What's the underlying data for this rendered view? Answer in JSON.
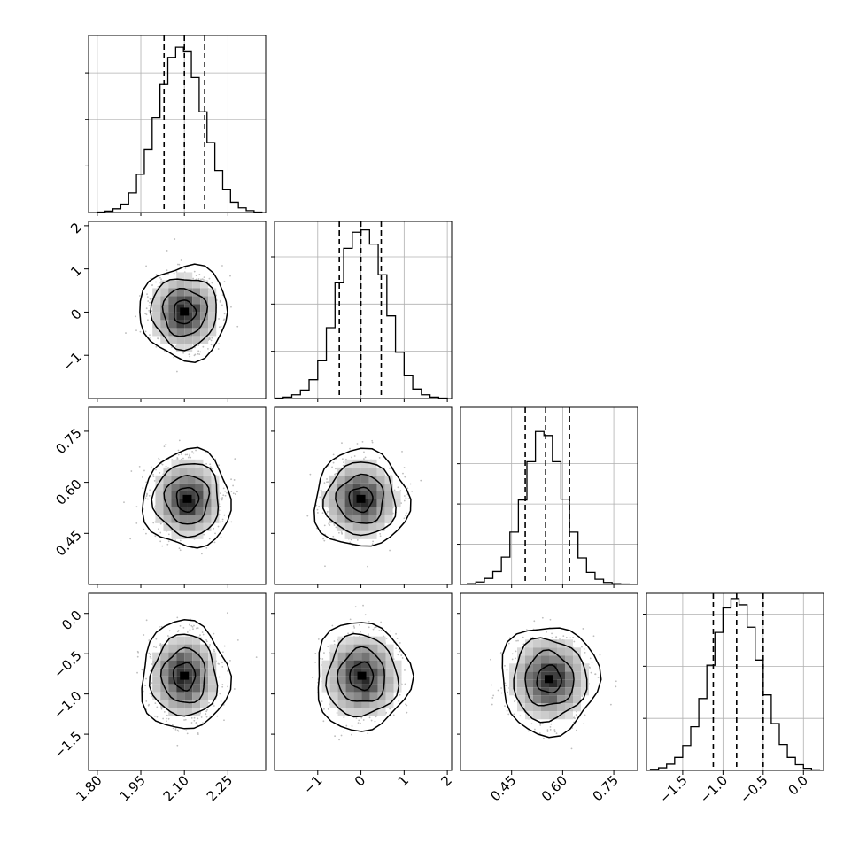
{
  "chart_data": {
    "type": "corner",
    "title": "",
    "grid": true,
    "parameters": [
      {
        "ticks": [
          1.8,
          1.95,
          2.1,
          2.25
        ],
        "tick_labels": [
          "1.80",
          "1.95",
          "2.10",
          "2.25"
        ],
        "range": [
          1.77,
          2.38
        ],
        "quantiles": [
          2.03,
          2.1,
          2.17
        ],
        "hist_bins": [
          1.8,
          1.827,
          1.854,
          1.881,
          1.908,
          1.935,
          1.962,
          1.989,
          2.016,
          2.043,
          2.07,
          2.097,
          2.124,
          2.151,
          2.178,
          2.205,
          2.232,
          2.259,
          2.286,
          2.313,
          2.34,
          2.367
        ],
        "hist_counts": [
          1,
          3,
          8,
          18,
          42,
          82,
          136,
          204,
          275,
          333,
          355,
          345,
          290,
          216,
          150,
          90,
          50,
          22,
          10,
          4,
          1
        ],
        "hist_max": 380,
        "hist_ticks": [
          100,
          200,
          300
        ]
      },
      {
        "ticks": [
          -1,
          0,
          1,
          2
        ],
        "tick_labels": [
          "−1",
          "0",
          "1",
          "2"
        ],
        "range": [
          -2.0,
          2.1
        ],
        "quantiles": [
          -0.5,
          0.0,
          0.47
        ],
        "hist_bins": [
          -2.0,
          -1.8,
          -1.6,
          -1.4,
          -1.2,
          -1.0,
          -0.8,
          -0.6,
          -0.4,
          -0.2,
          0.0,
          0.2,
          0.4,
          0.6,
          0.8,
          1.0,
          1.2,
          1.4,
          1.6,
          1.8,
          2.0
        ],
        "hist_counts": [
          1,
          3,
          8,
          18,
          40,
          80,
          150,
          245,
          318,
          352,
          357,
          327,
          262,
          175,
          98,
          48,
          20,
          8,
          3,
          1
        ],
        "hist_max": 375,
        "hist_ticks": [
          100,
          200,
          300
        ]
      },
      {
        "ticks": [
          0.45,
          0.6,
          0.75
        ],
        "tick_labels": [
          "0.45",
          "0.60",
          "0.75"
        ],
        "range": [
          0.3,
          0.82
        ],
        "quantiles": [
          0.49,
          0.55,
          0.62
        ],
        "hist_bins": [
          0.32,
          0.345,
          0.37,
          0.395,
          0.42,
          0.445,
          0.47,
          0.495,
          0.52,
          0.545,
          0.57,
          0.595,
          0.62,
          0.645,
          0.67,
          0.695,
          0.72,
          0.745,
          0.77,
          0.795
        ],
        "hist_counts": [
          2,
          6,
          15,
          32,
          68,
          130,
          210,
          305,
          380,
          370,
          305,
          212,
          130,
          66,
          30,
          13,
          5,
          2,
          1
        ],
        "hist_max": 440,
        "hist_ticks": [
          100,
          200,
          300
        ]
      },
      {
        "ticks": [
          -1.5,
          -1.0,
          -0.5,
          0.0
        ],
        "tick_labels": [
          "−1.5",
          "−1.0",
          "−0.5",
          "0.0"
        ],
        "range": [
          -1.95,
          0.25
        ],
        "quantiles": [
          -1.12,
          -0.83,
          -0.5
        ],
        "hist_bins": [
          -1.9,
          -1.8,
          -1.7,
          -1.6,
          -1.5,
          -1.4,
          -1.3,
          -1.2,
          -1.1,
          -1.0,
          -0.9,
          -0.8,
          -0.7,
          -0.6,
          -0.5,
          -0.4,
          -0.3,
          -0.2,
          -0.1,
          0.0,
          0.1,
          0.2
        ],
        "hist_counts": [
          2,
          5,
          12,
          25,
          48,
          84,
          138,
          202,
          265,
          312,
          330,
          318,
          275,
          212,
          145,
          90,
          50,
          25,
          11,
          4,
          1
        ],
        "hist_max": 340,
        "hist_ticks": [
          100,
          200,
          300
        ]
      }
    ],
    "pair_centers": {
      "1_0": [
        2.1,
        0.0
      ],
      "2_0": [
        2.11,
        0.55
      ],
      "2_1": [
        0.0,
        0.55
      ],
      "3_0": [
        2.1,
        -0.78
      ],
      "3_1": [
        0.02,
        -0.78
      ],
      "3_2": [
        0.56,
        -0.82
      ]
    },
    "pair_spread": {
      "1_0": [
        0.058,
        0.42
      ],
      "2_0": [
        0.058,
        0.055
      ],
      "2_1": [
        0.42,
        0.055
      ],
      "3_0": [
        0.058,
        0.26
      ],
      "3_1": [
        0.42,
        0.26
      ],
      "3_2": [
        0.055,
        0.26
      ]
    },
    "contour_levels_sigma": [
      0.5,
      1.0,
      1.5,
      2.0
    ]
  }
}
